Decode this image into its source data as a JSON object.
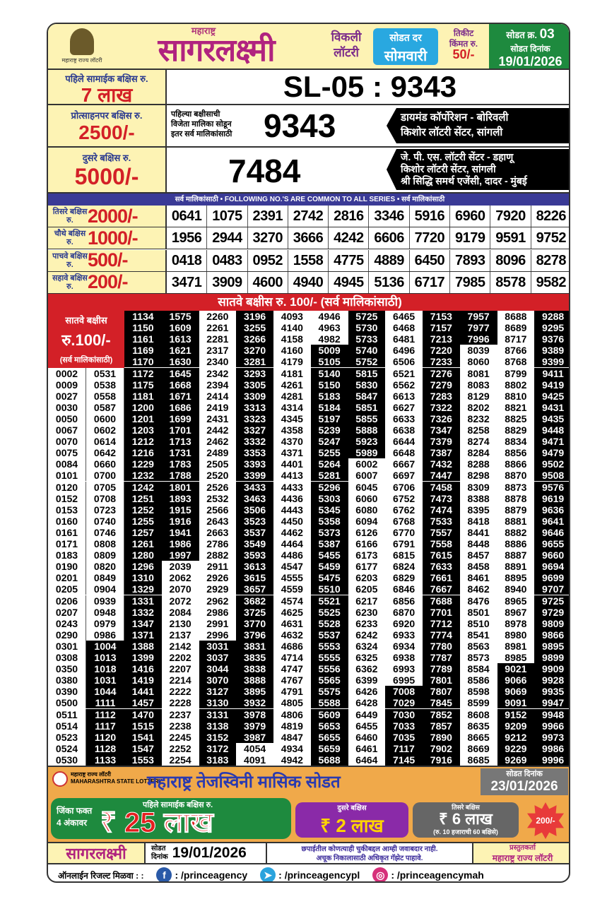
{
  "header": {
    "logo_caption": "महाराष्ट्र राज्य लॉटरी",
    "brand_top": "महाराष्ट्र",
    "brand": "सागरलक्ष्मी",
    "weekly": "विकली",
    "lottery": "लॉटरी",
    "draw_day_label": "सोडत दर",
    "draw_day": "सोमवारी",
    "ticket_label1": "तिकीट",
    "ticket_label2": "किंमत रु.",
    "ticket_price": "50/-",
    "draw_no_label": "सोडत क्र.",
    "draw_no": "03",
    "draw_date_label": "सोडत दिनांक",
    "draw_date": "19/01/2026"
  },
  "first_prize": {
    "label": "पहिले सामाईक बक्षिस रु.",
    "amount": "7 लाख",
    "result": "SL-05 : 9343"
  },
  "consolation": {
    "label": "प्रोत्साहनपर बक्षिस रु.",
    "amount": "2500/-",
    "note": [
      "पहिल्या बक्षीसाची",
      "विजेता मालिका सोडून",
      "इतर सर्व मालिकांसाठी"
    ],
    "number": "9343",
    "agents": [
      "डायमंड कॉर्पोरेशन - बोरिवली",
      "किशोर लॉटरी सेंटर, सांगली"
    ]
  },
  "second_prize": {
    "label": "दुसरे बक्षिस रु.",
    "amount": "5000/-",
    "number": "7484",
    "agents": [
      "जे. पी. एस. लॉटरी सेंटर - डहाणू",
      "किशोर लॉटरी सेंटर, सांगली",
      "श्री सिद्धि समर्थ एजेंसी, दादर - मुंबई"
    ]
  },
  "common_banner": "सर्व मालिकांसाठी  •  FOLLOWING NO.'S ARE COMMON TO ALL SERIES  •  सर्व मालिकांसाठी",
  "prizes": [
    {
      "label": "तिसरे बक्षिस रु.",
      "amount": "2000/-",
      "numbers": [
        "0641",
        "1075",
        "2391",
        "2742",
        "2816",
        "3346",
        "5916",
        "6960",
        "7920",
        "8226"
      ]
    },
    {
      "label": "चौथे बक्षिस रु.",
      "amount": "1000/-",
      "numbers": [
        "1956",
        "2944",
        "3270",
        "3666",
        "4242",
        "6606",
        "7720",
        "9179",
        "9591",
        "9752"
      ]
    },
    {
      "label": "पाचवे बक्षिस रु.",
      "amount": "500/-",
      "numbers": [
        "0418",
        "0483",
        "0952",
        "1558",
        "4775",
        "4889",
        "6450",
        "7893",
        "8096",
        "8278"
      ]
    },
    {
      "label": "सहावे बक्षिस रु.",
      "amount": "200/-",
      "numbers": [
        "3471",
        "3909",
        "4600",
        "4940",
        "4945",
        "5136",
        "6717",
        "7985",
        "8578",
        "9582"
      ]
    }
  ],
  "seventh": {
    "banner": "सातवे बक्षीस रु. 100/-  (सर्व मालिकांसाठी)",
    "head1": "सातवे बक्षीस",
    "head2": "रु.100/-",
    "head3": "(सर्व मालिकांसाठी)",
    "columns": [
      [
        "0002",
        "0009",
        "0027",
        "0030",
        "0050",
        "0067",
        "0070",
        "0075",
        "0084",
        "0101",
        "0120",
        "0152",
        "0153",
        "0160",
        "0161",
        "0171",
        "0183",
        "0190",
        "0201",
        "0205",
        "0206",
        "0207",
        "0243",
        "0290",
        "0301",
        "0308",
        "0350",
        "0380",
        "0390",
        "0500",
        "0511",
        "0514",
        "0523",
        "0524",
        "0530"
      ],
      [
        "0531",
        "0538",
        "0558",
        "0587",
        "0600",
        "0602",
        "0614",
        "0642",
        "0660",
        "0700",
        "0705",
        "0708",
        "0723",
        "0740",
        "0746",
        "0808",
        "0809",
        "0820",
        "0849",
        "0904",
        "0939",
        "0948",
        "0979",
        "0986",
        "1004",
        "1013",
        "1018",
        "1031",
        "1044",
        "1111",
        "1112",
        "1117",
        "1120",
        "1128",
        "1133"
      ],
      [
        "1134",
        "1150",
        "1161",
        "1169",
        "1170",
        "1172",
        "1175",
        "1181",
        "1200",
        "1201",
        "1203",
        "1212",
        "1216",
        "1229",
        "1232",
        "1242",
        "1251",
        "1252",
        "1255",
        "1257",
        "1261",
        "1280",
        "1296",
        "1310",
        "1329",
        "1331",
        "1332",
        "1347",
        "1371",
        "1388",
        "1399",
        "1416",
        "1419",
        "1441",
        "1457",
        "1470",
        "1515",
        "1541",
        "1547",
        "1553"
      ],
      [
        "1575",
        "1609",
        "1613",
        "1621",
        "1630",
        "1645",
        "1668",
        "1671",
        "1686",
        "1699",
        "1701",
        "1713",
        "1731",
        "1783",
        "1788",
        "1801",
        "1893",
        "1915",
        "1916",
        "1941",
        "1986",
        "1997",
        "2039",
        "2062",
        "2070",
        "2072",
        "2084",
        "2130",
        "2137",
        "2142",
        "2202",
        "2207",
        "2214",
        "2222",
        "2228",
        "2237",
        "2238",
        "2245",
        "2252",
        "2254"
      ],
      [
        "2260",
        "2261",
        "2281",
        "2317",
        "2340",
        "2342",
        "2394",
        "2414",
        "2419",
        "2431",
        "2442",
        "2462",
        "2489",
        "2505",
        "2520",
        "2526",
        "2532",
        "2566",
        "2643",
        "2663",
        "2786",
        "2882",
        "2911",
        "2926",
        "2929",
        "2962",
        "2986",
        "2991",
        "2996",
        "3031",
        "3037",
        "3044",
        "3070",
        "3127",
        "3130",
        "3131",
        "3138",
        "3152",
        "3172",
        "3183"
      ],
      [
        "3196",
        "3255",
        "3266",
        "3270",
        "3281",
        "3293",
        "3305",
        "3309",
        "3313",
        "3323",
        "3327",
        "3332",
        "3353",
        "3393",
        "3399",
        "3433",
        "3463",
        "3506",
        "3523",
        "3537",
        "3549",
        "3593",
        "3613",
        "3615",
        "3657",
        "3682",
        "3725",
        "3770",
        "3796",
        "3831",
        "3835",
        "3838",
        "3888",
        "3895",
        "3932",
        "3978",
        "3979",
        "3987",
        "4054",
        "4091"
      ],
      [
        "4093",
        "4140",
        "4158",
        "4160",
        "4179",
        "4181",
        "4261",
        "4281",
        "4314",
        "4345",
        "4358",
        "4370",
        "4371",
        "4401",
        "4413",
        "4433",
        "4436",
        "4443",
        "4450",
        "4462",
        "4464",
        "4486",
        "4547",
        "4555",
        "4559",
        "4574",
        "4625",
        "4631",
        "4632",
        "4686",
        "4714",
        "4747",
        "4767",
        "4791",
        "4805",
        "4806",
        "4819",
        "4847",
        "4934",
        "4942"
      ],
      [
        "4946",
        "4963",
        "4982",
        "5009",
        "5105",
        "5140",
        "5150",
        "5183",
        "5184",
        "5197",
        "5239",
        "5247",
        "5255",
        "5264",
        "5281",
        "5296",
        "5303",
        "5345",
        "5358",
        "5373",
        "5387",
        "5455",
        "5459",
        "5475",
        "5510",
        "5521",
        "5525",
        "5528",
        "5537",
        "5553",
        "5555",
        "5556",
        "5565",
        "5575",
        "5588",
        "5609",
        "5653",
        "5655",
        "5659",
        "5688"
      ],
      [
        "5725",
        "5730",
        "5733",
        "5740",
        "5752",
        "5815",
        "5830",
        "5847",
        "5851",
        "5855",
        "5888",
        "5923",
        "5989",
        "6002",
        "6007",
        "6045",
        "6060",
        "6080",
        "6094",
        "6126",
        "6166",
        "6173",
        "6177",
        "6203",
        "6205",
        "6217",
        "6230",
        "6233",
        "6242",
        "6324",
        "6325",
        "6362",
        "6399",
        "6426",
        "6428",
        "6449",
        "6455",
        "6460",
        "6461",
        "6464"
      ],
      [
        "6465",
        "6468",
        "6481",
        "6496",
        "6506",
        "6521",
        "6562",
        "6613",
        "6627",
        "6633",
        "6638",
        "6644",
        "6648",
        "6667",
        "6697",
        "6706",
        "6752",
        "6762",
        "6768",
        "6770",
        "6791",
        "6815",
        "6824",
        "6829",
        "6846",
        "6856",
        "6870",
        "6920",
        "6933",
        "6934",
        "6938",
        "6993",
        "6995",
        "7008",
        "7029",
        "7030",
        "7033",
        "7035",
        "7117",
        "7145"
      ],
      [
        "7153",
        "7157",
        "7213",
        "7220",
        "7233",
        "7276",
        "7279",
        "7283",
        "7322",
        "7326",
        "7347",
        "7379",
        "7387",
        "7432",
        "7447",
        "7458",
        "7473",
        "7474",
        "7533",
        "7557",
        "7558",
        "7615",
        "7633",
        "7661",
        "7667",
        "7688",
        "7701",
        "7712",
        "7774",
        "7780",
        "7787",
        "7789",
        "7801",
        "7807",
        "7845",
        "7852",
        "7857",
        "7890",
        "7902",
        "7916"
      ],
      [
        "7957",
        "7977",
        "7996",
        "8039",
        "8060",
        "8081",
        "8083",
        "8129",
        "8202",
        "8232",
        "8258",
        "8274",
        "8284",
        "8288",
        "8298",
        "8309",
        "8388",
        "8395",
        "8418",
        "8441",
        "8448",
        "8457",
        "8458",
        "8461",
        "8462",
        "8476",
        "8501",
        "8510",
        "8541",
        "8563",
        "8573",
        "8584",
        "8586",
        "8598",
        "8599",
        "8608",
        "8635",
        "8665",
        "8669",
        "8685"
      ],
      [
        "8688",
        "8689",
        "8717",
        "8766",
        "8768",
        "8799",
        "8802",
        "8810",
        "8821",
        "8825",
        "8829",
        "8834",
        "8856",
        "8866",
        "8870",
        "8873",
        "8878",
        "8879",
        "8881",
        "8882",
        "8886",
        "8887",
        "8891",
        "8895",
        "8940",
        "8965",
        "8967",
        "8978",
        "8980",
        "8981",
        "8985",
        "9021",
        "9066",
        "9069",
        "9091",
        "9152",
        "9209",
        "9212",
        "9229",
        "9269"
      ],
      [
        "9288",
        "9295",
        "9376",
        "9389",
        "9399",
        "9411",
        "9419",
        "9425",
        "9431",
        "9435",
        "9448",
        "9471",
        "9479",
        "9502",
        "9508",
        "9576",
        "9619",
        "9636",
        "9641",
        "9646",
        "9655",
        "9660",
        "9694",
        "9699",
        "9707",
        "9725",
        "9729",
        "9809",
        "9866",
        "9895",
        "9899",
        "9909",
        "9928",
        "9935",
        "9947",
        "9948",
        "9966",
        "9973",
        "9986",
        "9996"
      ]
    ]
  },
  "promo": {
    "logo_text": "महाराष्ट्र राज्य लॉटरी",
    "logo_sub": "MAHARASHTRA STATE LOTTERY",
    "title": "महाराष्ट्र तेजस्विनी मासिक सोडत",
    "date_label": "सोडत दिनांक",
    "date": "23/01/2026",
    "win_line1": "जिंका फक्त",
    "win_line2": "4 अंकावर",
    "first_label": "पहिले सामाईक बक्षिस रु.",
    "first_amount": "₹ 25 लाख",
    "second_label": "दुसरे बक्षिस",
    "second_amount": "₹ 2 लाख",
    "third_label": "तिसरे बक्षिस",
    "third_amount": "₹ 6 लाख",
    "third_note": "(रु. 10 हजाराची 60 बक्षिसे)",
    "ticket_price": "200/-"
  },
  "bottom": {
    "brand": "सागरलक्ष्मी",
    "date_label1": "सोडत",
    "date_label2": "दिनांक",
    "date": "19/01/2026",
    "disclaimer1": "छपाईतील कोणत्याही चुकीबद्दल आम्ही जवाबदार नाही.",
    "disclaimer2": "अचूक निकालासाठी अधिकृत गॅझेट पाहावे.",
    "presenter_label": "प्रस्तुतकर्ता",
    "presenter": "महाराष्ट्र राज्य लॉटरी"
  },
  "social": {
    "label": "ऑनलाईन रिजल्ट मिळवा : :",
    "facebook": ": /princeagency",
    "telegram": ": /princeagencypl",
    "instagram": ": /princeagencymah"
  },
  "colors": {
    "brand": "#b0237f",
    "red": "#d32027",
    "blue_banner": "#3a3a96",
    "green": "#1e8a3e",
    "cream": "#fdf3b4",
    "promo": "#f0a94a"
  }
}
